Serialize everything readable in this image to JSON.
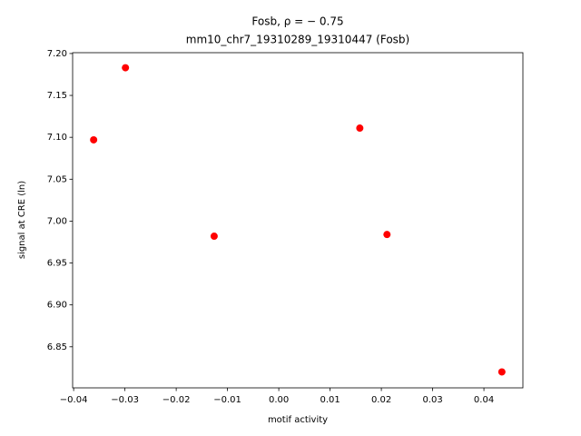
{
  "chart_data": {
    "type": "scatter",
    "title": "Fosb, ρ = − 0.75",
    "subtitle": "mm10_chr7_19310289_19310447 (Fosb)",
    "xlabel": "motif activity",
    "ylabel": "signal at CRE (ln)",
    "color": "#ff0000",
    "x": [
      -0.0361,
      -0.0299,
      -0.0126,
      0.0158,
      0.0211,
      0.0435
    ],
    "values": [
      7.097,
      7.183,
      6.982,
      7.111,
      6.984,
      6.82
    ],
    "xlim": [
      -0.0402,
      0.0476
    ],
    "ylim": [
      6.801,
      7.201
    ],
    "xticks": [
      {
        "value": -0.04,
        "label": "−0.04"
      },
      {
        "value": -0.03,
        "label": "−0.03"
      },
      {
        "value": -0.02,
        "label": "−0.02"
      },
      {
        "value": -0.01,
        "label": "−0.01"
      },
      {
        "value": 0,
        "label": "0.00"
      },
      {
        "value": 0.01,
        "label": "0.01"
      },
      {
        "value": 0.02,
        "label": "0.02"
      },
      {
        "value": 0.03,
        "label": "0.03"
      },
      {
        "value": 0.04,
        "label": "0.04"
      }
    ],
    "yticks": [
      {
        "value": 6.85,
        "label": "6.85"
      },
      {
        "value": 6.9,
        "label": "6.90"
      },
      {
        "value": 6.95,
        "label": "6.95"
      },
      {
        "value": 7.0,
        "label": "7.00"
      },
      {
        "value": 7.05,
        "label": "7.05"
      },
      {
        "value": 7.1,
        "label": "7.10"
      },
      {
        "value": 7.15,
        "label": "7.15"
      },
      {
        "value": 7.2,
        "label": "7.20"
      }
    ]
  }
}
